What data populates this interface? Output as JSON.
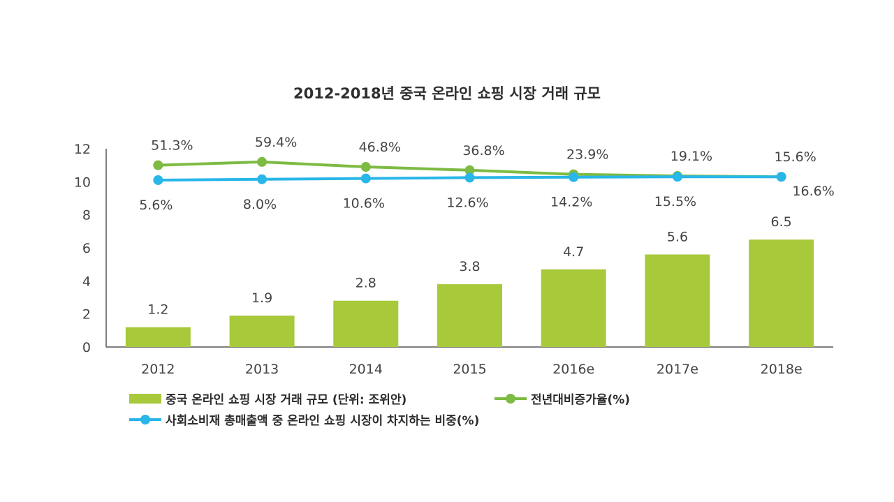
{
  "colors": {
    "bar": "#a8c93a",
    "growth": "#7dbb42",
    "share": "#29b6e8",
    "axis": "#555555",
    "label": "#444444"
  },
  "chart_data": {
    "type": "bar",
    "title": "2012-2018년 중국 온라인 쇼핑 시장 거래 규모",
    "categories": [
      "2012",
      "2013",
      "2014",
      "2015",
      "2016e",
      "2017e",
      "2018e"
    ],
    "ylim": [
      0,
      12
    ],
    "yticks": [
      0,
      2,
      4,
      6,
      8,
      10,
      12
    ],
    "grid": false,
    "legend_position": "bottom",
    "series": [
      {
        "name": "중국 온라인 쇼핑 시장 거래 규모 (단위: 조위안)",
        "type": "bar",
        "values": [
          1.2,
          1.9,
          2.8,
          3.8,
          4.7,
          5.6,
          6.5
        ],
        "labels": [
          "1.2",
          "1.9",
          "2.8",
          "3.8",
          "4.7",
          "5.6",
          "6.5"
        ]
      },
      {
        "name": "전년대비증가율(%)",
        "type": "line",
        "values": [
          11.0,
          11.2,
          10.9,
          10.7,
          10.45,
          10.35,
          10.3
        ],
        "labels": [
          "51.3%",
          "59.4%",
          "46.8%",
          "36.8%",
          "23.9%",
          "19.1%",
          "15.6%"
        ]
      },
      {
        "name": "사회소비재 총매출액 중 온라인 쇼핑 시장이 차지하는 비중(%)",
        "type": "line",
        "values": [
          10.1,
          10.15,
          10.2,
          10.25,
          10.28,
          10.3,
          10.3
        ],
        "labels": [
          "5.6%",
          "8.0%",
          "10.6%",
          "12.6%",
          "14.2%",
          "15.5%",
          "16.6%"
        ]
      }
    ]
  }
}
